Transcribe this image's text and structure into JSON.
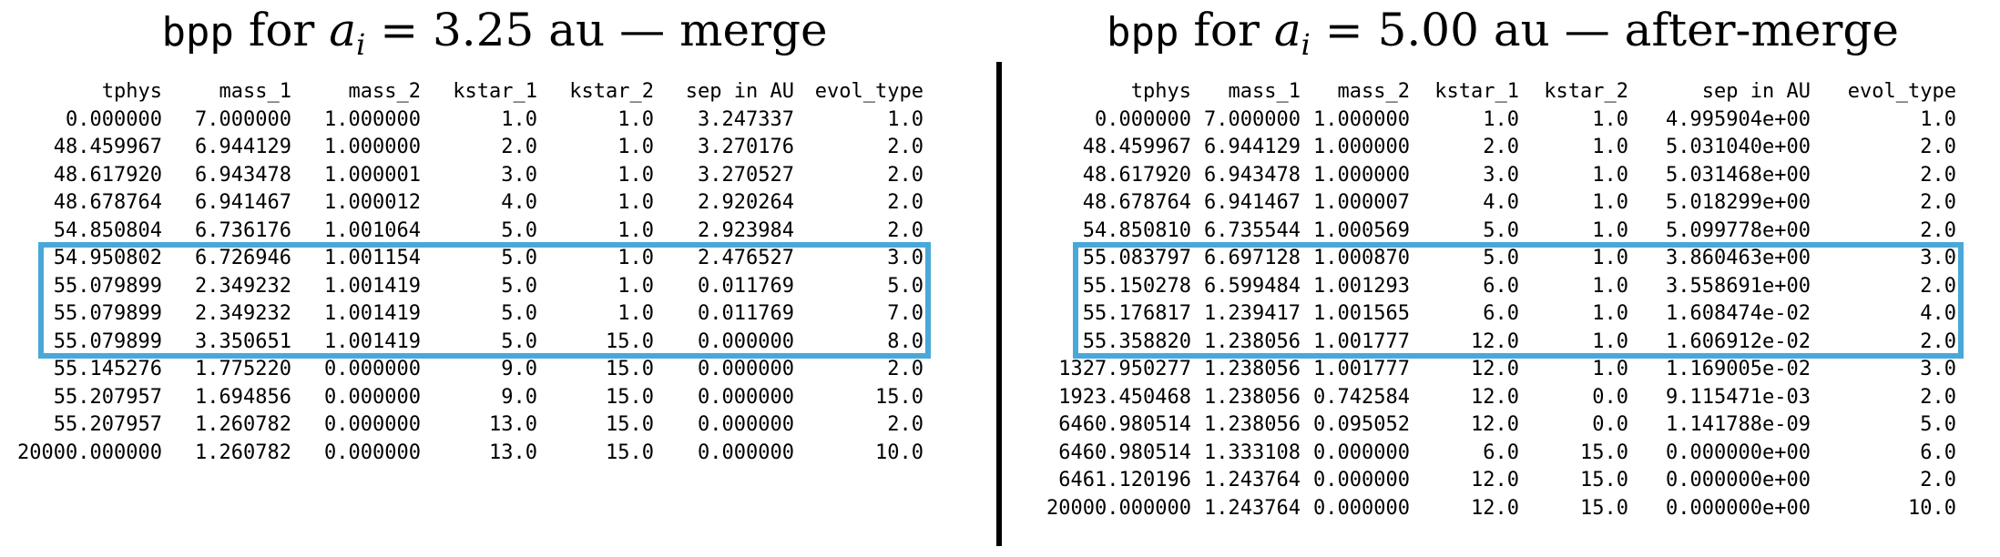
{
  "panels": [
    {
      "title": {
        "code": "bpp",
        "prefix": "for",
        "var": "a",
        "sub": "i",
        "eq": "= 3.25",
        "unit": "au",
        "dash": "—",
        "suffix": "merge"
      },
      "columns": [
        "tphys",
        "mass_1",
        "mass_2",
        "kstar_1",
        "kstar_2",
        "sep in AU",
        "evol_type"
      ],
      "rows": [
        [
          "0.000000",
          "7.000000",
          "1.000000",
          "1.0",
          "1.0",
          "3.247337",
          "1.0"
        ],
        [
          "48.459967",
          "6.944129",
          "1.000000",
          "2.0",
          "1.0",
          "3.270176",
          "2.0"
        ],
        [
          "48.617920",
          "6.943478",
          "1.000001",
          "3.0",
          "1.0",
          "3.270527",
          "2.0"
        ],
        [
          "48.678764",
          "6.941467",
          "1.000012",
          "4.0",
          "1.0",
          "2.920264",
          "2.0"
        ],
        [
          "54.850804",
          "6.736176",
          "1.001064",
          "5.0",
          "1.0",
          "2.923984",
          "2.0"
        ],
        [
          "54.950802",
          "6.726946",
          "1.001154",
          "5.0",
          "1.0",
          "2.476527",
          "3.0"
        ],
        [
          "55.079899",
          "2.349232",
          "1.001419",
          "5.0",
          "1.0",
          "0.011769",
          "5.0"
        ],
        [
          "55.079899",
          "2.349232",
          "1.001419",
          "5.0",
          "1.0",
          "0.011769",
          "7.0"
        ],
        [
          "55.079899",
          "3.350651",
          "1.001419",
          "5.0",
          "15.0",
          "0.000000",
          "8.0"
        ],
        [
          "55.145276",
          "1.775220",
          "0.000000",
          "9.0",
          "15.0",
          "0.000000",
          "2.0"
        ],
        [
          "55.207957",
          "1.694856",
          "0.000000",
          "9.0",
          "15.0",
          "0.000000",
          "15.0"
        ],
        [
          "55.207957",
          "1.260782",
          "0.000000",
          "13.0",
          "15.0",
          "0.000000",
          "2.0"
        ],
        [
          "20000.000000",
          "1.260782",
          "0.000000",
          "13.0",
          "15.0",
          "0.000000",
          "10.0"
        ]
      ],
      "highlight_rows": [
        5,
        8
      ],
      "highlight_color": "#4aa8d8"
    },
    {
      "title": {
        "code": "bpp",
        "prefix": "for",
        "var": "a",
        "sub": "i",
        "eq": "= 5.00",
        "unit": "au",
        "dash": "—",
        "suffix": "after-merge"
      },
      "columns": [
        "tphys",
        "mass_1",
        "mass_2",
        "kstar_1",
        "kstar_2",
        "sep in AU",
        "evol_type"
      ],
      "rows": [
        [
          "0.000000",
          "7.000000",
          "1.000000",
          "1.0",
          "1.0",
          "4.995904e+00",
          "1.0"
        ],
        [
          "48.459967",
          "6.944129",
          "1.000000",
          "2.0",
          "1.0",
          "5.031040e+00",
          "2.0"
        ],
        [
          "48.617920",
          "6.943478",
          "1.000000",
          "3.0",
          "1.0",
          "5.031468e+00",
          "2.0"
        ],
        [
          "48.678764",
          "6.941467",
          "1.000007",
          "4.0",
          "1.0",
          "5.018299e+00",
          "2.0"
        ],
        [
          "54.850810",
          "6.735544",
          "1.000569",
          "5.0",
          "1.0",
          "5.099778e+00",
          "2.0"
        ],
        [
          "55.083797",
          "6.697128",
          "1.000870",
          "5.0",
          "1.0",
          "3.860463e+00",
          "3.0"
        ],
        [
          "55.150278",
          "6.599484",
          "1.001293",
          "6.0",
          "1.0",
          "3.558691e+00",
          "2.0"
        ],
        [
          "55.176817",
          "1.239417",
          "1.001565",
          "6.0",
          "1.0",
          "1.608474e-02",
          "4.0"
        ],
        [
          "55.358820",
          "1.238056",
          "1.001777",
          "12.0",
          "1.0",
          "1.606912e-02",
          "2.0"
        ],
        [
          "1327.950277",
          "1.238056",
          "1.001777",
          "12.0",
          "1.0",
          "1.169005e-02",
          "3.0"
        ],
        [
          "1923.450468",
          "1.238056",
          "0.742584",
          "12.0",
          "0.0",
          "9.115471e-03",
          "2.0"
        ],
        [
          "6460.980514",
          "1.238056",
          "0.095052",
          "12.0",
          "0.0",
          "1.141788e-09",
          "5.0"
        ],
        [
          "6460.980514",
          "1.333108",
          "0.000000",
          "6.0",
          "15.0",
          "0.000000e+00",
          "6.0"
        ],
        [
          "6461.120196",
          "1.243764",
          "0.000000",
          "12.0",
          "15.0",
          "0.000000e+00",
          "2.0"
        ],
        [
          "20000.000000",
          "1.243764",
          "0.000000",
          "12.0",
          "15.0",
          "0.000000e+00",
          "10.0"
        ]
      ],
      "highlight_rows": [
        5,
        8
      ],
      "highlight_color": "#4aa8d8"
    }
  ]
}
